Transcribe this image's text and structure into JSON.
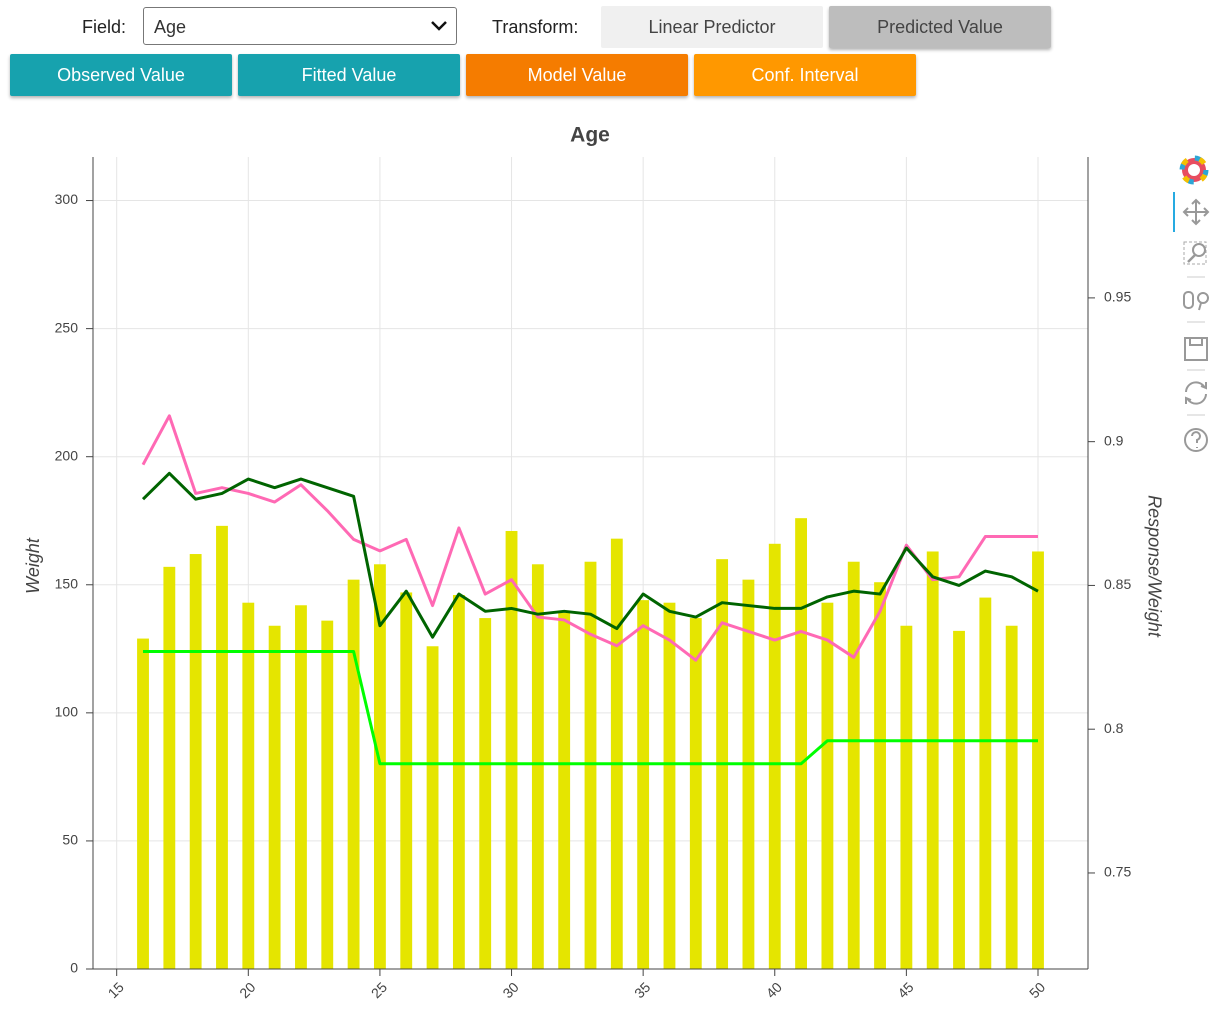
{
  "controls": {
    "field_label": "Field:",
    "field_value": "Age",
    "transform_label": "Transform:",
    "transform_options": [
      "Linear Predictor",
      "Predicted Value"
    ],
    "transform_active": 1,
    "buttons": [
      {
        "label": "Observed Value",
        "color": "#17a2ae"
      },
      {
        "label": "Fitted Value",
        "color": "#17a2ae"
      },
      {
        "label": "Model Value",
        "color": "#f57c00"
      },
      {
        "label": "Conf. Interval",
        "color": "#ff9800"
      }
    ]
  },
  "chart_data": {
    "type": "bar",
    "title": "Age",
    "ylabel": "Weight",
    "y2label": "Response/Weight",
    "x": [
      16,
      17,
      18,
      19,
      20,
      21,
      22,
      23,
      24,
      25,
      26,
      27,
      28,
      29,
      30,
      31,
      32,
      33,
      34,
      35,
      36,
      37,
      38,
      39,
      40,
      41,
      42,
      43,
      44,
      45,
      46,
      47,
      48,
      49,
      50
    ],
    "series": [
      {
        "type": "bar",
        "color": "#e5e500",
        "values": [
          129,
          157,
          162,
          173,
          143,
          134,
          142,
          136,
          152,
          158,
          147,
          126,
          146,
          137,
          171,
          158,
          139,
          159,
          168,
          144,
          143,
          137,
          160,
          152,
          166,
          176,
          143,
          159,
          151,
          134,
          163,
          132,
          145,
          134,
          163
        ]
      },
      {
        "type": "line",
        "axis": "y2",
        "color": "#ff69b4",
        "values": [
          0.892,
          0.909,
          0.882,
          0.884,
          0.882,
          0.879,
          0.885,
          0.876,
          0.866,
          0.862,
          0.866,
          0.843,
          0.87,
          0.847,
          0.852,
          0.839,
          0.838,
          0.833,
          0.829,
          0.836,
          0.831,
          0.824,
          0.837,
          0.834,
          0.831,
          0.834,
          0.831,
          0.825,
          0.841,
          0.864,
          0.852,
          0.853,
          0.867,
          0.867,
          0.867
        ]
      },
      {
        "type": "line",
        "axis": "y2",
        "color": "#006400",
        "values": [
          0.88,
          0.889,
          0.88,
          0.882,
          0.887,
          0.884,
          0.887,
          0.884,
          0.881,
          0.836,
          0.848,
          0.832,
          0.847,
          0.841,
          0.842,
          0.84,
          0.841,
          0.84,
          0.835,
          0.847,
          0.841,
          0.839,
          0.844,
          0.843,
          0.842,
          0.842,
          0.846,
          0.848,
          0.847,
          0.863,
          0.853,
          0.85,
          0.855,
          0.853,
          0.848
        ]
      },
      {
        "type": "line",
        "axis": "y2",
        "color": "#00ff00",
        "values": [
          0.827,
          0.827,
          0.827,
          0.827,
          0.827,
          0.827,
          0.827,
          0.827,
          0.827,
          0.788,
          0.788,
          0.788,
          0.788,
          0.788,
          0.788,
          0.788,
          0.788,
          0.788,
          0.788,
          0.788,
          0.788,
          0.788,
          0.788,
          0.788,
          0.788,
          0.788,
          0.796,
          0.796,
          0.796,
          0.796,
          0.796,
          0.796,
          0.796,
          0.796,
          0.796
        ]
      }
    ],
    "xlim": [
      14.1,
      51.9
    ],
    "xticks": [
      15,
      20,
      25,
      30,
      35,
      40,
      45,
      50
    ],
    "ylim": [
      0,
      317
    ],
    "yticks": [
      0,
      50,
      100,
      150,
      200,
      250,
      300
    ],
    "y2lim": [
      0.7166,
      0.999
    ],
    "y2ticks": [
      0.75,
      0.8,
      0.85,
      0.9,
      0.95
    ],
    "grid": true
  }
}
